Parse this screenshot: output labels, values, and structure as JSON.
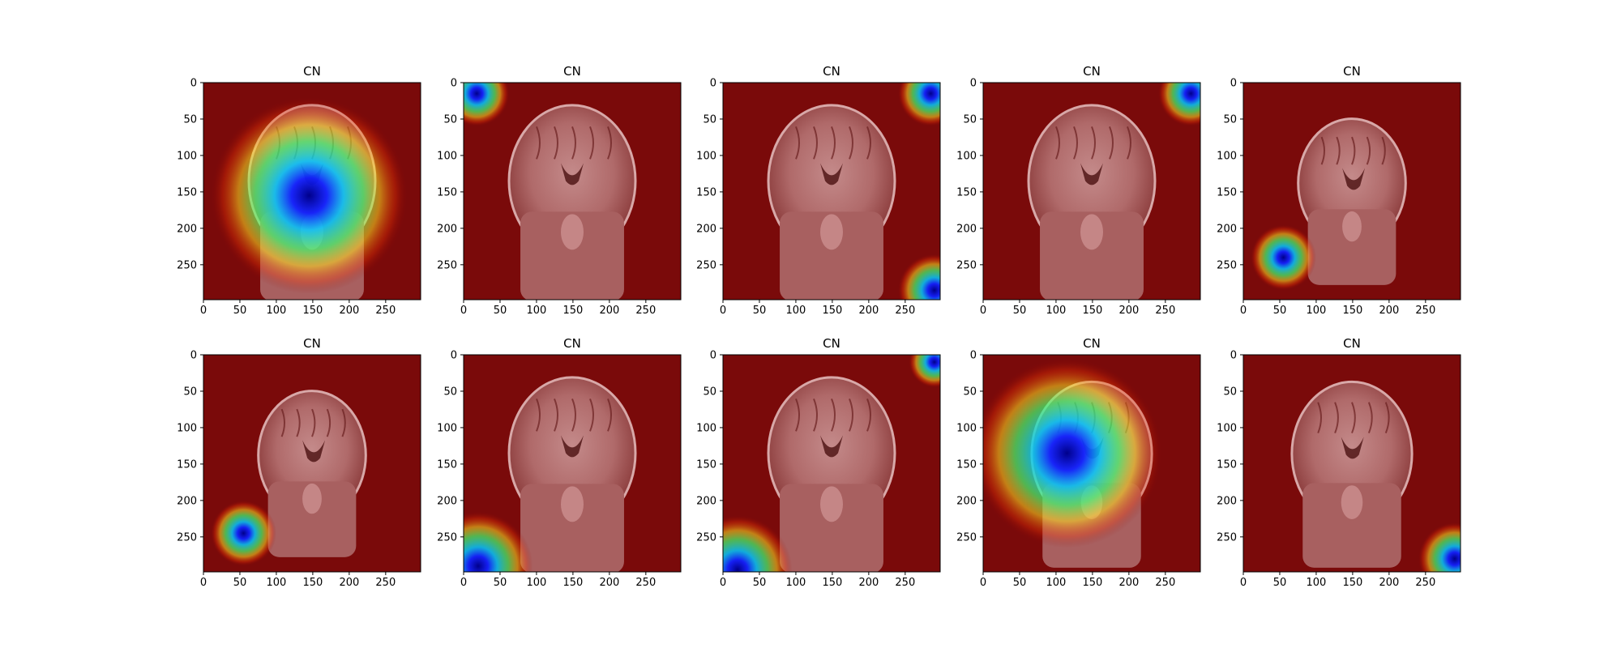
{
  "figure": {
    "rows": 2,
    "cols": 5,
    "tick_labels": {
      "x": [
        "0",
        "50",
        "100",
        "150",
        "200",
        "250"
      ],
      "y": [
        "0",
        "50",
        "100",
        "150",
        "200",
        "250"
      ]
    },
    "axis_range": {
      "x": [
        0,
        298
      ],
      "y": [
        298,
        0
      ]
    },
    "panels": [
      {
        "title": "CN",
        "heat_spots": [
          {
            "cx": 145,
            "cy": 155,
            "r": 135
          }
        ],
        "brain_scale": 1.0
      },
      {
        "title": "CN",
        "heat_spots": [
          {
            "cx": 18,
            "cy": 15,
            "r": 45
          }
        ],
        "brain_scale": 1.0
      },
      {
        "title": "CN",
        "heat_spots": [
          {
            "cx": 285,
            "cy": 15,
            "r": 45
          },
          {
            "cx": 290,
            "cy": 285,
            "r": 50
          }
        ],
        "brain_scale": 1.0
      },
      {
        "title": "CN",
        "heat_spots": [
          {
            "cx": 285,
            "cy": 15,
            "r": 45
          }
        ],
        "brain_scale": 1.0
      },
      {
        "title": "CN",
        "heat_spots": [
          {
            "cx": 55,
            "cy": 240,
            "r": 45
          }
        ],
        "brain_scale": 0.85
      },
      {
        "title": "CN",
        "heat_spots": [
          {
            "cx": 55,
            "cy": 245,
            "r": 45
          }
        ],
        "brain_scale": 0.85
      },
      {
        "title": "CN",
        "heat_spots": [
          {
            "cx": 20,
            "cy": 290,
            "r": 75
          }
        ],
        "brain_scale": 1.0
      },
      {
        "title": "CN",
        "heat_spots": [
          {
            "cx": 20,
            "cy": 295,
            "r": 75
          },
          {
            "cx": 290,
            "cy": 10,
            "r": 35
          }
        ],
        "brain_scale": 1.0
      },
      {
        "title": "CN",
        "heat_spots": [
          {
            "cx": 115,
            "cy": 135,
            "r": 130
          }
        ],
        "brain_scale": 0.95
      },
      {
        "title": "CN",
        "heat_spots": [
          {
            "cx": 290,
            "cy": 280,
            "r": 50
          }
        ],
        "brain_scale": 0.95
      }
    ]
  }
}
